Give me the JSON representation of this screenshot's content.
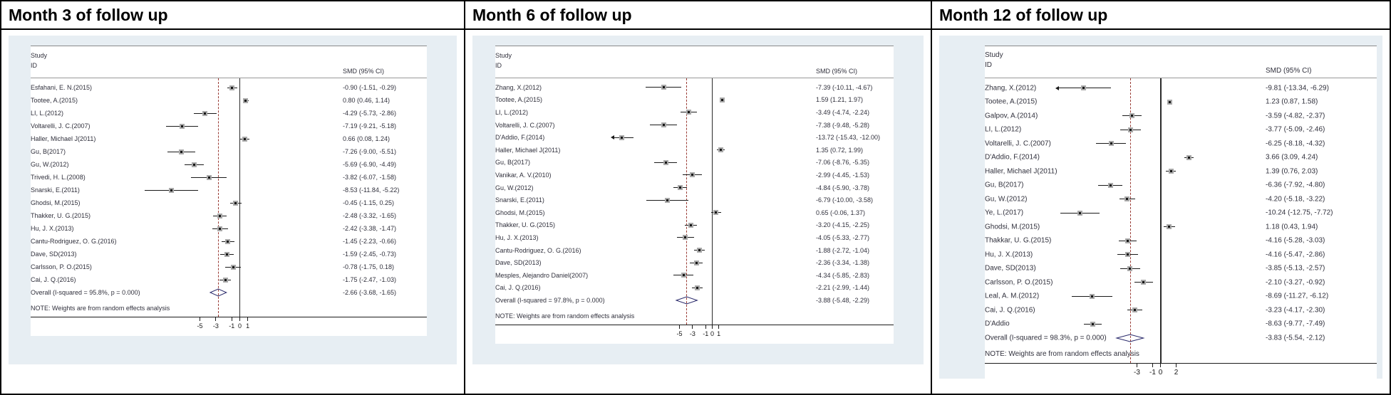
{
  "colors": {
    "panel_bg": "#e7eef3",
    "dashed_overall_line": "#9a3b34",
    "diamond": "#28286a",
    "marker_fill": "#a9a9a9",
    "axis_line": "#1a1a1a"
  },
  "chart_data": [
    {
      "type": "scatter",
      "subtype": "forest_plot",
      "title": "Month 3 of follow up",
      "columns": {
        "study": "Study",
        "id": "ID",
        "smd": "SMD (95% CI)"
      },
      "studies": [
        {
          "label": "Esfahani, E. N.(2015)",
          "smd": -0.9,
          "lo": -1.51,
          "hi": -0.29,
          "ci_text": "-0.90 (-1.51, -0.29)"
        },
        {
          "label": "Tootee, A.(2015)",
          "smd": 0.8,
          "lo": 0.46,
          "hi": 1.14,
          "ci_text": "0.80 (0.46, 1.14)"
        },
        {
          "label": "LI, L.(2012)",
          "smd": -4.29,
          "lo": -5.73,
          "hi": -2.86,
          "ci_text": "-4.29 (-5.73, -2.86)"
        },
        {
          "label": "Voltarelli, J. C.(2007)",
          "smd": -7.19,
          "lo": -9.21,
          "hi": -5.18,
          "ci_text": "-7.19 (-9.21, -5.18)"
        },
        {
          "label": "Haller, Michael J(2011)",
          "smd": 0.66,
          "lo": 0.08,
          "hi": 1.24,
          "ci_text": "0.66 (0.08, 1.24)"
        },
        {
          "label": "Gu, B(2017)",
          "smd": -7.26,
          "lo": -9.0,
          "hi": -5.51,
          "ci_text": "-7.26 (-9.00, -5.51)"
        },
        {
          "label": "Gu, W.(2012)",
          "smd": -5.69,
          "lo": -6.9,
          "hi": -4.49,
          "ci_text": "-5.69 (-6.90, -4.49)"
        },
        {
          "label": "Trivedi, H. L.(2008)",
          "smd": -3.82,
          "lo": -6.07,
          "hi": -1.58,
          "ci_text": "-3.82 (-6.07, -1.58)"
        },
        {
          "label": "Snarski, E.(2011)",
          "smd": -8.53,
          "lo": -11.84,
          "hi": -5.22,
          "ci_text": "-8.53 (-11.84, -5.22)"
        },
        {
          "label": "Ghodsi, M.(2015)",
          "smd": -0.45,
          "lo": -1.15,
          "hi": 0.25,
          "ci_text": "-0.45 (-1.15, 0.25)"
        },
        {
          "label": "Thakker, U. G.(2015)",
          "smd": -2.48,
          "lo": -3.32,
          "hi": -1.65,
          "ci_text": "-2.48 (-3.32, -1.65)"
        },
        {
          "label": "Hu, J. X.(2013)",
          "smd": -2.42,
          "lo": -3.38,
          "hi": -1.47,
          "ci_text": "-2.42 (-3.38, -1.47)"
        },
        {
          "label": "Cantu-Rodriguez, O. G.(2016)",
          "smd": -1.45,
          "lo": -2.23,
          "hi": -0.66,
          "ci_text": "-1.45 (-2.23, -0.66)"
        },
        {
          "label": "Dave, SD(2013)",
          "smd": -1.59,
          "lo": -2.45,
          "hi": -0.73,
          "ci_text": "-1.59 (-2.45, -0.73)"
        },
        {
          "label": "Carlsson, P. O.(2015)",
          "smd": -0.78,
          "lo": -1.75,
          "hi": 0.18,
          "ci_text": "-0.78 (-1.75, 0.18)"
        },
        {
          "label": "Cai, J. Q.(2016)",
          "smd": -1.75,
          "lo": -2.47,
          "hi": -1.03,
          "ci_text": "-1.75 (-2.47, -1.03)"
        }
      ],
      "overall": {
        "label": "Overall  (I-squared = 95.8%, p = 0.000)",
        "smd": -2.66,
        "lo": -3.68,
        "hi": -1.65,
        "ci_text": "-2.66 (-3.68, -1.65)"
      },
      "note": "NOTE: Weights are from random effects analysis",
      "x_ticks": [
        -5,
        -3,
        -1,
        0,
        1
      ],
      "x_zero_line": 0
    },
    {
      "type": "scatter",
      "subtype": "forest_plot",
      "title": "Month 6 of follow up",
      "columns": {
        "study": "Study",
        "id": "ID",
        "smd": "SMD (95% CI)"
      },
      "studies": [
        {
          "label": "Zhang, X.(2012)",
          "smd": -7.39,
          "lo": -10.11,
          "hi": -4.67,
          "ci_text": "-7.39 (-10.11, -4.67)"
        },
        {
          "label": "Tootee, A.(2015)",
          "smd": 1.59,
          "lo": 1.21,
          "hi": 1.97,
          "ci_text": "1.59 (1.21, 1.97)"
        },
        {
          "label": "LI, L.(2012)",
          "smd": -3.49,
          "lo": -4.74,
          "hi": -2.24,
          "ci_text": "-3.49 (-4.74, -2.24)"
        },
        {
          "label": "Voltarelli, J. C.(2007)",
          "smd": -7.38,
          "lo": -9.48,
          "hi": -5.28,
          "ci_text": "-7.38 (-9.48, -5.28)"
        },
        {
          "label": "D'Addio, F.(2014)",
          "smd": -13.72,
          "lo": -15.43,
          "hi": -12.0,
          "ci_text": "-13.72 (-15.43, -12.00)",
          "arrow": "left"
        },
        {
          "label": "Haller, Michael J(2011)",
          "smd": 1.35,
          "lo": 0.72,
          "hi": 1.99,
          "ci_text": "1.35 (0.72, 1.99)"
        },
        {
          "label": "Gu, B(2017)",
          "smd": -7.06,
          "lo": -8.76,
          "hi": -5.35,
          "ci_text": "-7.06 (-8.76, -5.35)"
        },
        {
          "label": "Vanikar, A. V.(2010)",
          "smd": -2.99,
          "lo": -4.45,
          "hi": -1.53,
          "ci_text": "-2.99 (-4.45, -1.53)"
        },
        {
          "label": "Gu, W.(2012)",
          "smd": -4.84,
          "lo": -5.9,
          "hi": -3.78,
          "ci_text": "-4.84 (-5.90, -3.78)"
        },
        {
          "label": "Snarski, E.(2011)",
          "smd": -6.79,
          "lo": -10.0,
          "hi": -3.58,
          "ci_text": "-6.79 (-10.00, -3.58)"
        },
        {
          "label": "Ghodsi, M.(2015)",
          "smd": 0.65,
          "lo": -0.06,
          "hi": 1.37,
          "ci_text": "0.65 (-0.06, 1.37)"
        },
        {
          "label": "Thakker, U. G.(2015)",
          "smd": -3.2,
          "lo": -4.15,
          "hi": -2.25,
          "ci_text": "-3.20 (-4.15, -2.25)"
        },
        {
          "label": "Hu, J. X.(2013)",
          "smd": -4.05,
          "lo": -5.33,
          "hi": -2.77,
          "ci_text": "-4.05 (-5.33, -2.77)"
        },
        {
          "label": "Cantu-Rodriguez, O. G.(2016)",
          "smd": -1.88,
          "lo": -2.72,
          "hi": -1.04,
          "ci_text": "-1.88 (-2.72, -1.04)"
        },
        {
          "label": "Dave, SD(2013)",
          "smd": -2.36,
          "lo": -3.34,
          "hi": -1.38,
          "ci_text": "-2.36 (-3.34, -1.38)"
        },
        {
          "label": "Mesples, Alejandro Daniel(2007)",
          "smd": -4.34,
          "lo": -5.85,
          "hi": -2.83,
          "ci_text": "-4.34 (-5.85, -2.83)"
        },
        {
          "label": "Cai, J. Q.(2016)",
          "smd": -2.21,
          "lo": -2.99,
          "hi": -1.44,
          "ci_text": "-2.21 (-2.99, -1.44)"
        }
      ],
      "overall": {
        "label": "Overall  (I-squared = 97.8%, p = 0.000)",
        "smd": -3.88,
        "lo": -5.48,
        "hi": -2.29,
        "ci_text": "-3.88 (-5.48, -2.29)"
      },
      "note": "NOTE: Weights are from random effects analysis",
      "x_ticks": [
        -5,
        -3,
        -1,
        0,
        1
      ],
      "x_zero_line": 0
    },
    {
      "type": "scatter",
      "subtype": "forest_plot",
      "title": "Month 12 of follow up",
      "columns": {
        "study": "Study",
        "id": "ID",
        "smd": "SMD (95% CI)"
      },
      "studies": [
        {
          "label": "Zhang, X.(2012)",
          "smd": -9.81,
          "lo": -13.34,
          "hi": -6.29,
          "ci_text": "-9.81 (-13.34, -6.29)",
          "arrow": "left"
        },
        {
          "label": "Tootee, A.(2015)",
          "smd": 1.23,
          "lo": 0.87,
          "hi": 1.58,
          "ci_text": "1.23 (0.87, 1.58)"
        },
        {
          "label": "Galpov, A.(2014)",
          "smd": -3.59,
          "lo": -4.82,
          "hi": -2.37,
          "ci_text": "-3.59 (-4.82, -2.37)"
        },
        {
          "label": "LI, L.(2012)",
          "smd": -3.77,
          "lo": -5.09,
          "hi": -2.46,
          "ci_text": "-3.77 (-5.09, -2.46)"
        },
        {
          "label": "Voltarelli, J. C.(2007)",
          "smd": -6.25,
          "lo": -8.18,
          "hi": -4.32,
          "ci_text": "-6.25 (-8.18, -4.32)"
        },
        {
          "label": "D'Addio, F.(2014)",
          "smd": 3.66,
          "lo": 3.09,
          "hi": 4.24,
          "ci_text": "3.66 (3.09, 4.24)"
        },
        {
          "label": "Haller, Michael J(2011)",
          "smd": 1.39,
          "lo": 0.76,
          "hi": 2.03,
          "ci_text": "1.39 (0.76, 2.03)"
        },
        {
          "label": "Gu, B(2017)",
          "smd": -6.36,
          "lo": -7.92,
          "hi": -4.8,
          "ci_text": "-6.36 (-7.92, -4.80)"
        },
        {
          "label": "Gu, W.(2012)",
          "smd": -4.2,
          "lo": -5.18,
          "hi": -3.22,
          "ci_text": "-4.20 (-5.18, -3.22)"
        },
        {
          "label": "Ye, L.(2017)",
          "smd": -10.24,
          "lo": -12.75,
          "hi": -7.72,
          "ci_text": "-10.24 (-12.75, -7.72)"
        },
        {
          "label": "Ghodsi, M.(2015)",
          "smd": 1.18,
          "lo": 0.43,
          "hi": 1.94,
          "ci_text": "1.18 (0.43, 1.94)"
        },
        {
          "label": "Thakkar, U. G.(2015)",
          "smd": -4.16,
          "lo": -5.28,
          "hi": -3.03,
          "ci_text": "-4.16 (-5.28, -3.03)"
        },
        {
          "label": "Hu, J. X.(2013)",
          "smd": -4.16,
          "lo": -5.47,
          "hi": -2.86,
          "ci_text": "-4.16 (-5.47, -2.86)"
        },
        {
          "label": "Dave, SD(2013)",
          "smd": -3.85,
          "lo": -5.13,
          "hi": -2.57,
          "ci_text": "-3.85 (-5.13, -2.57)"
        },
        {
          "label": "Carlsson, P. O.(2015)",
          "smd": -2.1,
          "lo": -3.27,
          "hi": -0.92,
          "ci_text": "-2.10 (-3.27, -0.92)"
        },
        {
          "label": "Leal, A. M.(2012)",
          "smd": -8.69,
          "lo": -11.27,
          "hi": -6.12,
          "ci_text": "-8.69 (-11.27, -6.12)"
        },
        {
          "label": "Cai, J. Q.(2016)",
          "smd": -3.23,
          "lo": -4.17,
          "hi": -2.3,
          "ci_text": "-3.23 (-4.17, -2.30)"
        },
        {
          "label": "D'Addio",
          "smd": -8.63,
          "lo": -9.77,
          "hi": -7.49,
          "ci_text": "-8.63 (-9.77, -7.49)"
        }
      ],
      "overall": {
        "label": "Overall  (I-squared = 98.3%, p = 0.000)",
        "smd": -3.83,
        "lo": -5.54,
        "hi": -2.12,
        "ci_text": "-3.83 (-5.54, -2.12)"
      },
      "note": "NOTE: Weights are from random effects analysis",
      "x_ticks": [
        -3,
        -1,
        0,
        2
      ],
      "x_zero_line": 0
    }
  ]
}
